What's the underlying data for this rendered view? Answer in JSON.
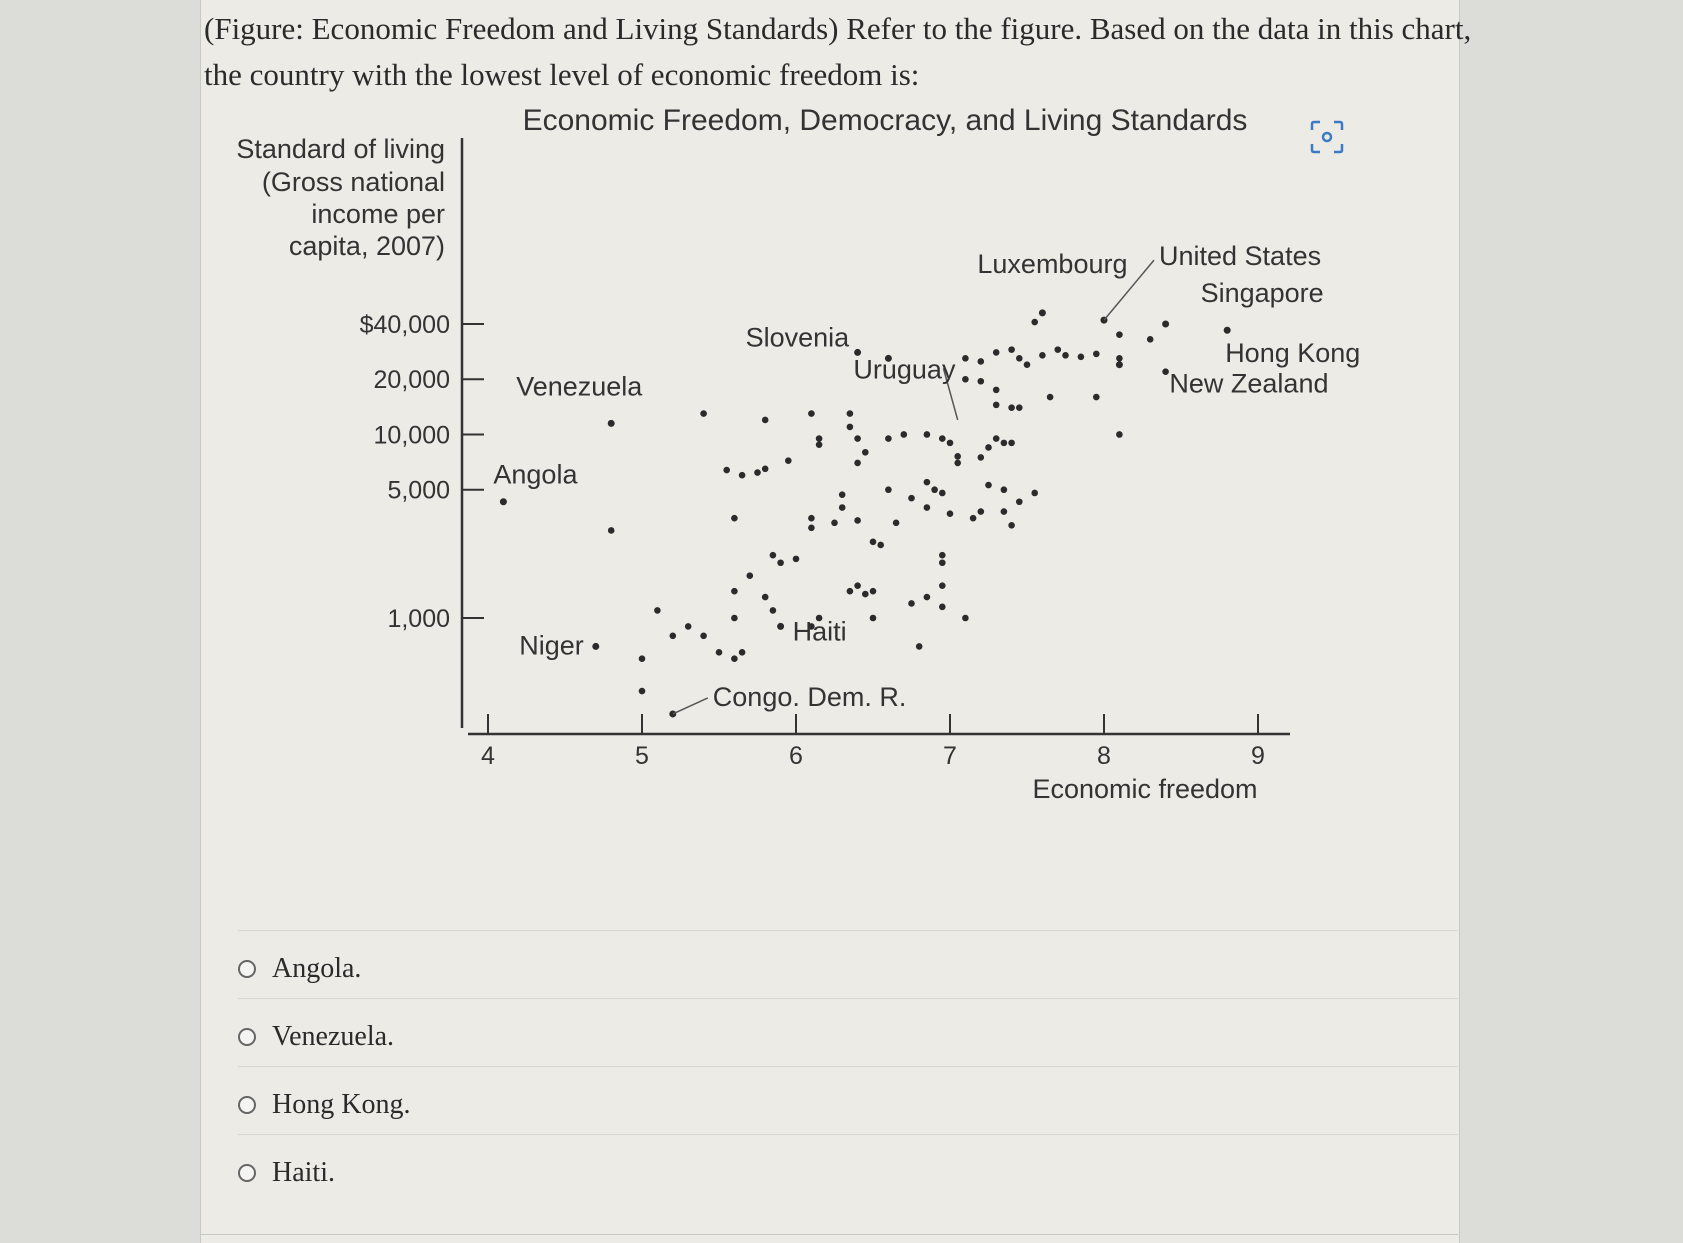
{
  "question": "(Figure: Economic Freedom and Living Standards) Refer to the figure. Based on the data in this chart, the country with the lowest level of economic freedom is:",
  "focus_icon": "scan-focus-icon",
  "chart_data": {
    "type": "scatter",
    "title": "Economic Freedom, Democracy, and Living Standards",
    "ylabel_lines": [
      "Standard of living",
      "(Gross national",
      "income per",
      "capita, 2007)"
    ],
    "xlabel": "Economic freedom",
    "xlim": [
      4,
      9
    ],
    "y_scale": "log",
    "y_ticks": [
      {
        "value": 40000,
        "label": "$40,000"
      },
      {
        "value": 20000,
        "label": "20,000"
      },
      {
        "value": 10000,
        "label": "10,000"
      },
      {
        "value": 5000,
        "label": "5,000"
      },
      {
        "value": 1000,
        "label": "1,000"
      }
    ],
    "x_ticks": [
      {
        "value": 4,
        "label": "4"
      },
      {
        "value": 5,
        "label": "5"
      },
      {
        "value": 6,
        "label": "6"
      },
      {
        "value": 7,
        "label": "7"
      },
      {
        "value": 8,
        "label": "8"
      },
      {
        "value": 9,
        "label": "9"
      }
    ],
    "labeled_points": [
      {
        "name": "Venezuela",
        "x": 4.8,
        "y": 11500
      },
      {
        "name": "Angola",
        "x": 4.1,
        "y": 4300
      },
      {
        "name": "Niger",
        "x": 4.7,
        "y": 700
      },
      {
        "name": "Slovenia",
        "x": 6.4,
        "y": 28000
      },
      {
        "name": "Uruguay",
        "x": 6.6,
        "y": 26000
      },
      {
        "name": "Haiti",
        "x": 5.9,
        "y": 900
      },
      {
        "name": "Congo. Dem. R.",
        "x": 5.2,
        "y": 300
      },
      {
        "name": "Luxembourg",
        "x": 7.6,
        "y": 46000
      },
      {
        "name": "United States",
        "x": 8.0,
        "y": 42000
      },
      {
        "name": "Singapore",
        "x": 8.4,
        "y": 40000
      },
      {
        "name": "Hong Kong",
        "x": 8.8,
        "y": 37000
      },
      {
        "name": "New Zealand",
        "x": 8.1,
        "y": 24000
      }
    ],
    "points": [
      [
        4.8,
        3000
      ],
      [
        5.1,
        1100
      ],
      [
        5.3,
        900
      ],
      [
        5.2,
        800
      ],
      [
        5.0,
        600
      ],
      [
        5.0,
        400
      ],
      [
        5.4,
        800
      ],
      [
        5.5,
        650
      ],
      [
        5.6,
        600
      ],
      [
        5.65,
        650
      ],
      [
        5.6,
        1000
      ],
      [
        5.6,
        1400
      ],
      [
        5.8,
        1300
      ],
      [
        5.85,
        1100
      ],
      [
        5.7,
        1700
      ],
      [
        5.85,
        2200
      ],
      [
        5.9,
        2000
      ],
      [
        6.0,
        2100
      ],
      [
        5.6,
        3500
      ],
      [
        5.55,
        6400
      ],
      [
        5.65,
        6000
      ],
      [
        5.75,
        6200
      ],
      [
        5.8,
        6500
      ],
      [
        5.95,
        7200
      ],
      [
        5.4,
        13000
      ],
      [
        5.8,
        12000
      ],
      [
        6.1,
        13000
      ],
      [
        6.15,
        9500
      ],
      [
        6.15,
        8800
      ],
      [
        6.35,
        13000
      ],
      [
        6.35,
        11000
      ],
      [
        6.4,
        9500
      ],
      [
        6.45,
        8000
      ],
      [
        6.4,
        7000
      ],
      [
        6.3,
        4700
      ],
      [
        6.3,
        4000
      ],
      [
        6.1,
        3500
      ],
      [
        6.1,
        3100
      ],
      [
        6.25,
        3300
      ],
      [
        6.4,
        3400
      ],
      [
        6.5,
        2600
      ],
      [
        6.55,
        2500
      ],
      [
        6.35,
        1400
      ],
      [
        6.4,
        1500
      ],
      [
        6.45,
        1350
      ],
      [
        6.5,
        1400
      ],
      [
        6.5,
        1000
      ],
      [
        6.15,
        1000
      ],
      [
        6.1,
        900
      ],
      [
        6.8,
        700
      ],
      [
        6.75,
        1200
      ],
      [
        6.85,
        1300
      ],
      [
        6.95,
        1150
      ],
      [
        6.95,
        1500
      ],
      [
        7.1,
        1000
      ],
      [
        6.95,
        2000
      ],
      [
        6.95,
        2200
      ],
      [
        6.6,
        9500
      ],
      [
        6.7,
        10000
      ],
      [
        6.85,
        10000
      ],
      [
        6.95,
        9500
      ],
      [
        7.0,
        9000
      ],
      [
        6.75,
        4500
      ],
      [
        6.85,
        4000
      ],
      [
        6.85,
        5500
      ],
      [
        6.9,
        5000
      ],
      [
        6.95,
        4800
      ],
      [
        6.6,
        5000
      ],
      [
        6.65,
        3300
      ],
      [
        7.0,
        3700
      ],
      [
        7.15,
        3500
      ],
      [
        7.2,
        3800
      ],
      [
        7.2,
        7500
      ],
      [
        7.25,
        8500
      ],
      [
        7.3,
        9500
      ],
      [
        7.05,
        7000
      ],
      [
        7.05,
        7600
      ],
      [
        7.35,
        9000
      ],
      [
        7.4,
        9000
      ],
      [
        7.25,
        5300
      ],
      [
        7.35,
        5000
      ],
      [
        7.45,
        4300
      ],
      [
        7.35,
        3800
      ],
      [
        7.4,
        3200
      ],
      [
        7.55,
        4800
      ],
      [
        7.1,
        20000
      ],
      [
        7.2,
        19500
      ],
      [
        7.3,
        17500
      ],
      [
        7.3,
        14500
      ],
      [
        7.4,
        14000
      ],
      [
        7.45,
        14000
      ],
      [
        7.65,
        16000
      ],
      [
        7.95,
        16000
      ],
      [
        7.1,
        26000
      ],
      [
        7.2,
        25000
      ],
      [
        7.3,
        28000
      ],
      [
        7.4,
        29000
      ],
      [
        7.45,
        26000
      ],
      [
        7.5,
        24000
      ],
      [
        7.6,
        27000
      ],
      [
        7.7,
        29000
      ],
      [
        7.75,
        27000
      ],
      [
        7.85,
        26500
      ],
      [
        7.95,
        27500
      ],
      [
        8.1,
        26000
      ],
      [
        8.3,
        33000
      ],
      [
        8.1,
        35000
      ],
      [
        8.4,
        22000
      ],
      [
        8.1,
        10000
      ],
      [
        7.55,
        41000
      ]
    ]
  },
  "options": [
    {
      "label": "Angola."
    },
    {
      "label": "Venezuela."
    },
    {
      "label": "Hong Kong."
    },
    {
      "label": "Haiti."
    }
  ]
}
